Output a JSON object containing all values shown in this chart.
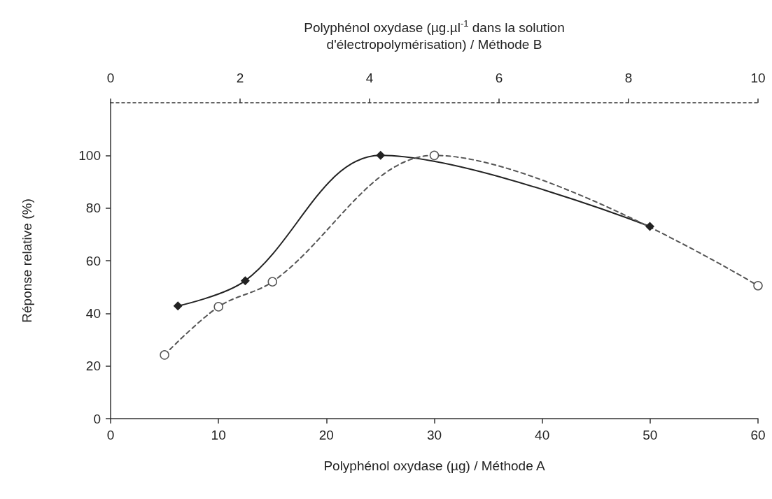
{
  "chart_data": {
    "type": "line",
    "xlabel": "Polyphénol oxydase (µg) / Méthode A",
    "x2label": "Polyphénol oxydase (µg.µl$^{-1}$ dans la solution\nd'électropolymérisation) / Méthode B",
    "ylabel": "Réponse relative (%)",
    "xlim": [
      0,
      60
    ],
    "xticks": [
      0,
      10,
      20,
      30,
      40,
      50,
      60
    ],
    "x2lim": [
      0,
      10
    ],
    "x2ticks": [
      0,
      2,
      4,
      6,
      8,
      10
    ],
    "ylim": [
      0,
      120
    ],
    "yticks": [
      0,
      20,
      40,
      60,
      80,
      100
    ],
    "grid": false,
    "series": [
      {
        "color": "#222222",
        "axis": "x2",
        "marker": "diamond",
        "line_style": "solid",
        "x": [
          1.04,
          2.08,
          4.17,
          8.33
        ],
        "values": [
          42.8,
          52.4,
          100,
          73
        ]
      },
      {
        "color": "#555555",
        "marker": "circle",
        "line_style": "dashed",
        "x": [
          5,
          10,
          15,
          30,
          60
        ],
        "values": [
          24.2,
          42.5,
          52,
          100,
          50.5
        ]
      }
    ]
  }
}
